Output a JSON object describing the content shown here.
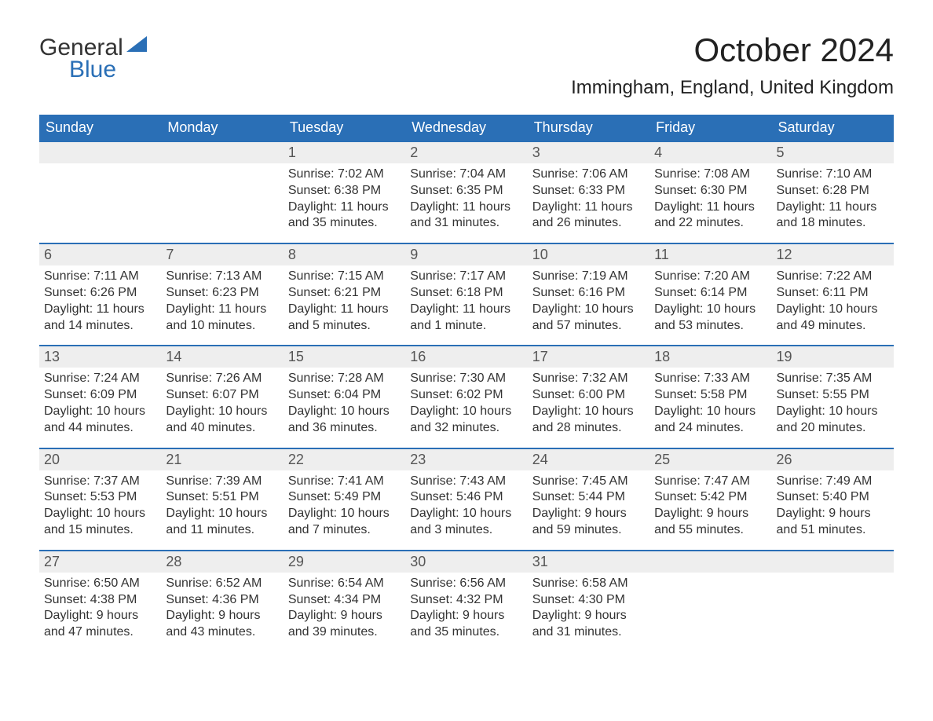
{
  "brand": {
    "general": "General",
    "blue": "Blue"
  },
  "title": "October 2024",
  "location": "Immingham, England, United Kingdom",
  "colors": {
    "header_bg": "#2a6fb6",
    "header_text": "#ffffff",
    "daynum_bg": "#eeeeee",
    "daynum_text": "#555555",
    "body_text": "#333333",
    "rule": "#2a6fb6",
    "page_bg": "#ffffff",
    "logo_blue": "#2a6fb6"
  },
  "fonts": {
    "title_size": 42,
    "location_size": 24,
    "dayheader_size": 18,
    "daynum_size": 18,
    "body_size": 16,
    "family": "Arial"
  },
  "day_headers": [
    "Sunday",
    "Monday",
    "Tuesday",
    "Wednesday",
    "Thursday",
    "Friday",
    "Saturday"
  ],
  "weeks": [
    [
      null,
      null,
      {
        "n": "1",
        "sunrise": "Sunrise: 7:02 AM",
        "sunset": "Sunset: 6:38 PM",
        "daylight": "Daylight: 11 hours and 35 minutes."
      },
      {
        "n": "2",
        "sunrise": "Sunrise: 7:04 AM",
        "sunset": "Sunset: 6:35 PM",
        "daylight": "Daylight: 11 hours and 31 minutes."
      },
      {
        "n": "3",
        "sunrise": "Sunrise: 7:06 AM",
        "sunset": "Sunset: 6:33 PM",
        "daylight": "Daylight: 11 hours and 26 minutes."
      },
      {
        "n": "4",
        "sunrise": "Sunrise: 7:08 AM",
        "sunset": "Sunset: 6:30 PM",
        "daylight": "Daylight: 11 hours and 22 minutes."
      },
      {
        "n": "5",
        "sunrise": "Sunrise: 7:10 AM",
        "sunset": "Sunset: 6:28 PM",
        "daylight": "Daylight: 11 hours and 18 minutes."
      }
    ],
    [
      {
        "n": "6",
        "sunrise": "Sunrise: 7:11 AM",
        "sunset": "Sunset: 6:26 PM",
        "daylight": "Daylight: 11 hours and 14 minutes."
      },
      {
        "n": "7",
        "sunrise": "Sunrise: 7:13 AM",
        "sunset": "Sunset: 6:23 PM",
        "daylight": "Daylight: 11 hours and 10 minutes."
      },
      {
        "n": "8",
        "sunrise": "Sunrise: 7:15 AM",
        "sunset": "Sunset: 6:21 PM",
        "daylight": "Daylight: 11 hours and 5 minutes."
      },
      {
        "n": "9",
        "sunrise": "Sunrise: 7:17 AM",
        "sunset": "Sunset: 6:18 PM",
        "daylight": "Daylight: 11 hours and 1 minute."
      },
      {
        "n": "10",
        "sunrise": "Sunrise: 7:19 AM",
        "sunset": "Sunset: 6:16 PM",
        "daylight": "Daylight: 10 hours and 57 minutes."
      },
      {
        "n": "11",
        "sunrise": "Sunrise: 7:20 AM",
        "sunset": "Sunset: 6:14 PM",
        "daylight": "Daylight: 10 hours and 53 minutes."
      },
      {
        "n": "12",
        "sunrise": "Sunrise: 7:22 AM",
        "sunset": "Sunset: 6:11 PM",
        "daylight": "Daylight: 10 hours and 49 minutes."
      }
    ],
    [
      {
        "n": "13",
        "sunrise": "Sunrise: 7:24 AM",
        "sunset": "Sunset: 6:09 PM",
        "daylight": "Daylight: 10 hours and 44 minutes."
      },
      {
        "n": "14",
        "sunrise": "Sunrise: 7:26 AM",
        "sunset": "Sunset: 6:07 PM",
        "daylight": "Daylight: 10 hours and 40 minutes."
      },
      {
        "n": "15",
        "sunrise": "Sunrise: 7:28 AM",
        "sunset": "Sunset: 6:04 PM",
        "daylight": "Daylight: 10 hours and 36 minutes."
      },
      {
        "n": "16",
        "sunrise": "Sunrise: 7:30 AM",
        "sunset": "Sunset: 6:02 PM",
        "daylight": "Daylight: 10 hours and 32 minutes."
      },
      {
        "n": "17",
        "sunrise": "Sunrise: 7:32 AM",
        "sunset": "Sunset: 6:00 PM",
        "daylight": "Daylight: 10 hours and 28 minutes."
      },
      {
        "n": "18",
        "sunrise": "Sunrise: 7:33 AM",
        "sunset": "Sunset: 5:58 PM",
        "daylight": "Daylight: 10 hours and 24 minutes."
      },
      {
        "n": "19",
        "sunrise": "Sunrise: 7:35 AM",
        "sunset": "Sunset: 5:55 PM",
        "daylight": "Daylight: 10 hours and 20 minutes."
      }
    ],
    [
      {
        "n": "20",
        "sunrise": "Sunrise: 7:37 AM",
        "sunset": "Sunset: 5:53 PM",
        "daylight": "Daylight: 10 hours and 15 minutes."
      },
      {
        "n": "21",
        "sunrise": "Sunrise: 7:39 AM",
        "sunset": "Sunset: 5:51 PM",
        "daylight": "Daylight: 10 hours and 11 minutes."
      },
      {
        "n": "22",
        "sunrise": "Sunrise: 7:41 AM",
        "sunset": "Sunset: 5:49 PM",
        "daylight": "Daylight: 10 hours and 7 minutes."
      },
      {
        "n": "23",
        "sunrise": "Sunrise: 7:43 AM",
        "sunset": "Sunset: 5:46 PM",
        "daylight": "Daylight: 10 hours and 3 minutes."
      },
      {
        "n": "24",
        "sunrise": "Sunrise: 7:45 AM",
        "sunset": "Sunset: 5:44 PM",
        "daylight": "Daylight: 9 hours and 59 minutes."
      },
      {
        "n": "25",
        "sunrise": "Sunrise: 7:47 AM",
        "sunset": "Sunset: 5:42 PM",
        "daylight": "Daylight: 9 hours and 55 minutes."
      },
      {
        "n": "26",
        "sunrise": "Sunrise: 7:49 AM",
        "sunset": "Sunset: 5:40 PM",
        "daylight": "Daylight: 9 hours and 51 minutes."
      }
    ],
    [
      {
        "n": "27",
        "sunrise": "Sunrise: 6:50 AM",
        "sunset": "Sunset: 4:38 PM",
        "daylight": "Daylight: 9 hours and 47 minutes."
      },
      {
        "n": "28",
        "sunrise": "Sunrise: 6:52 AM",
        "sunset": "Sunset: 4:36 PM",
        "daylight": "Daylight: 9 hours and 43 minutes."
      },
      {
        "n": "29",
        "sunrise": "Sunrise: 6:54 AM",
        "sunset": "Sunset: 4:34 PM",
        "daylight": "Daylight: 9 hours and 39 minutes."
      },
      {
        "n": "30",
        "sunrise": "Sunrise: 6:56 AM",
        "sunset": "Sunset: 4:32 PM",
        "daylight": "Daylight: 9 hours and 35 minutes."
      },
      {
        "n": "31",
        "sunrise": "Sunrise: 6:58 AM",
        "sunset": "Sunset: 4:30 PM",
        "daylight": "Daylight: 9 hours and 31 minutes."
      },
      null,
      null
    ]
  ]
}
